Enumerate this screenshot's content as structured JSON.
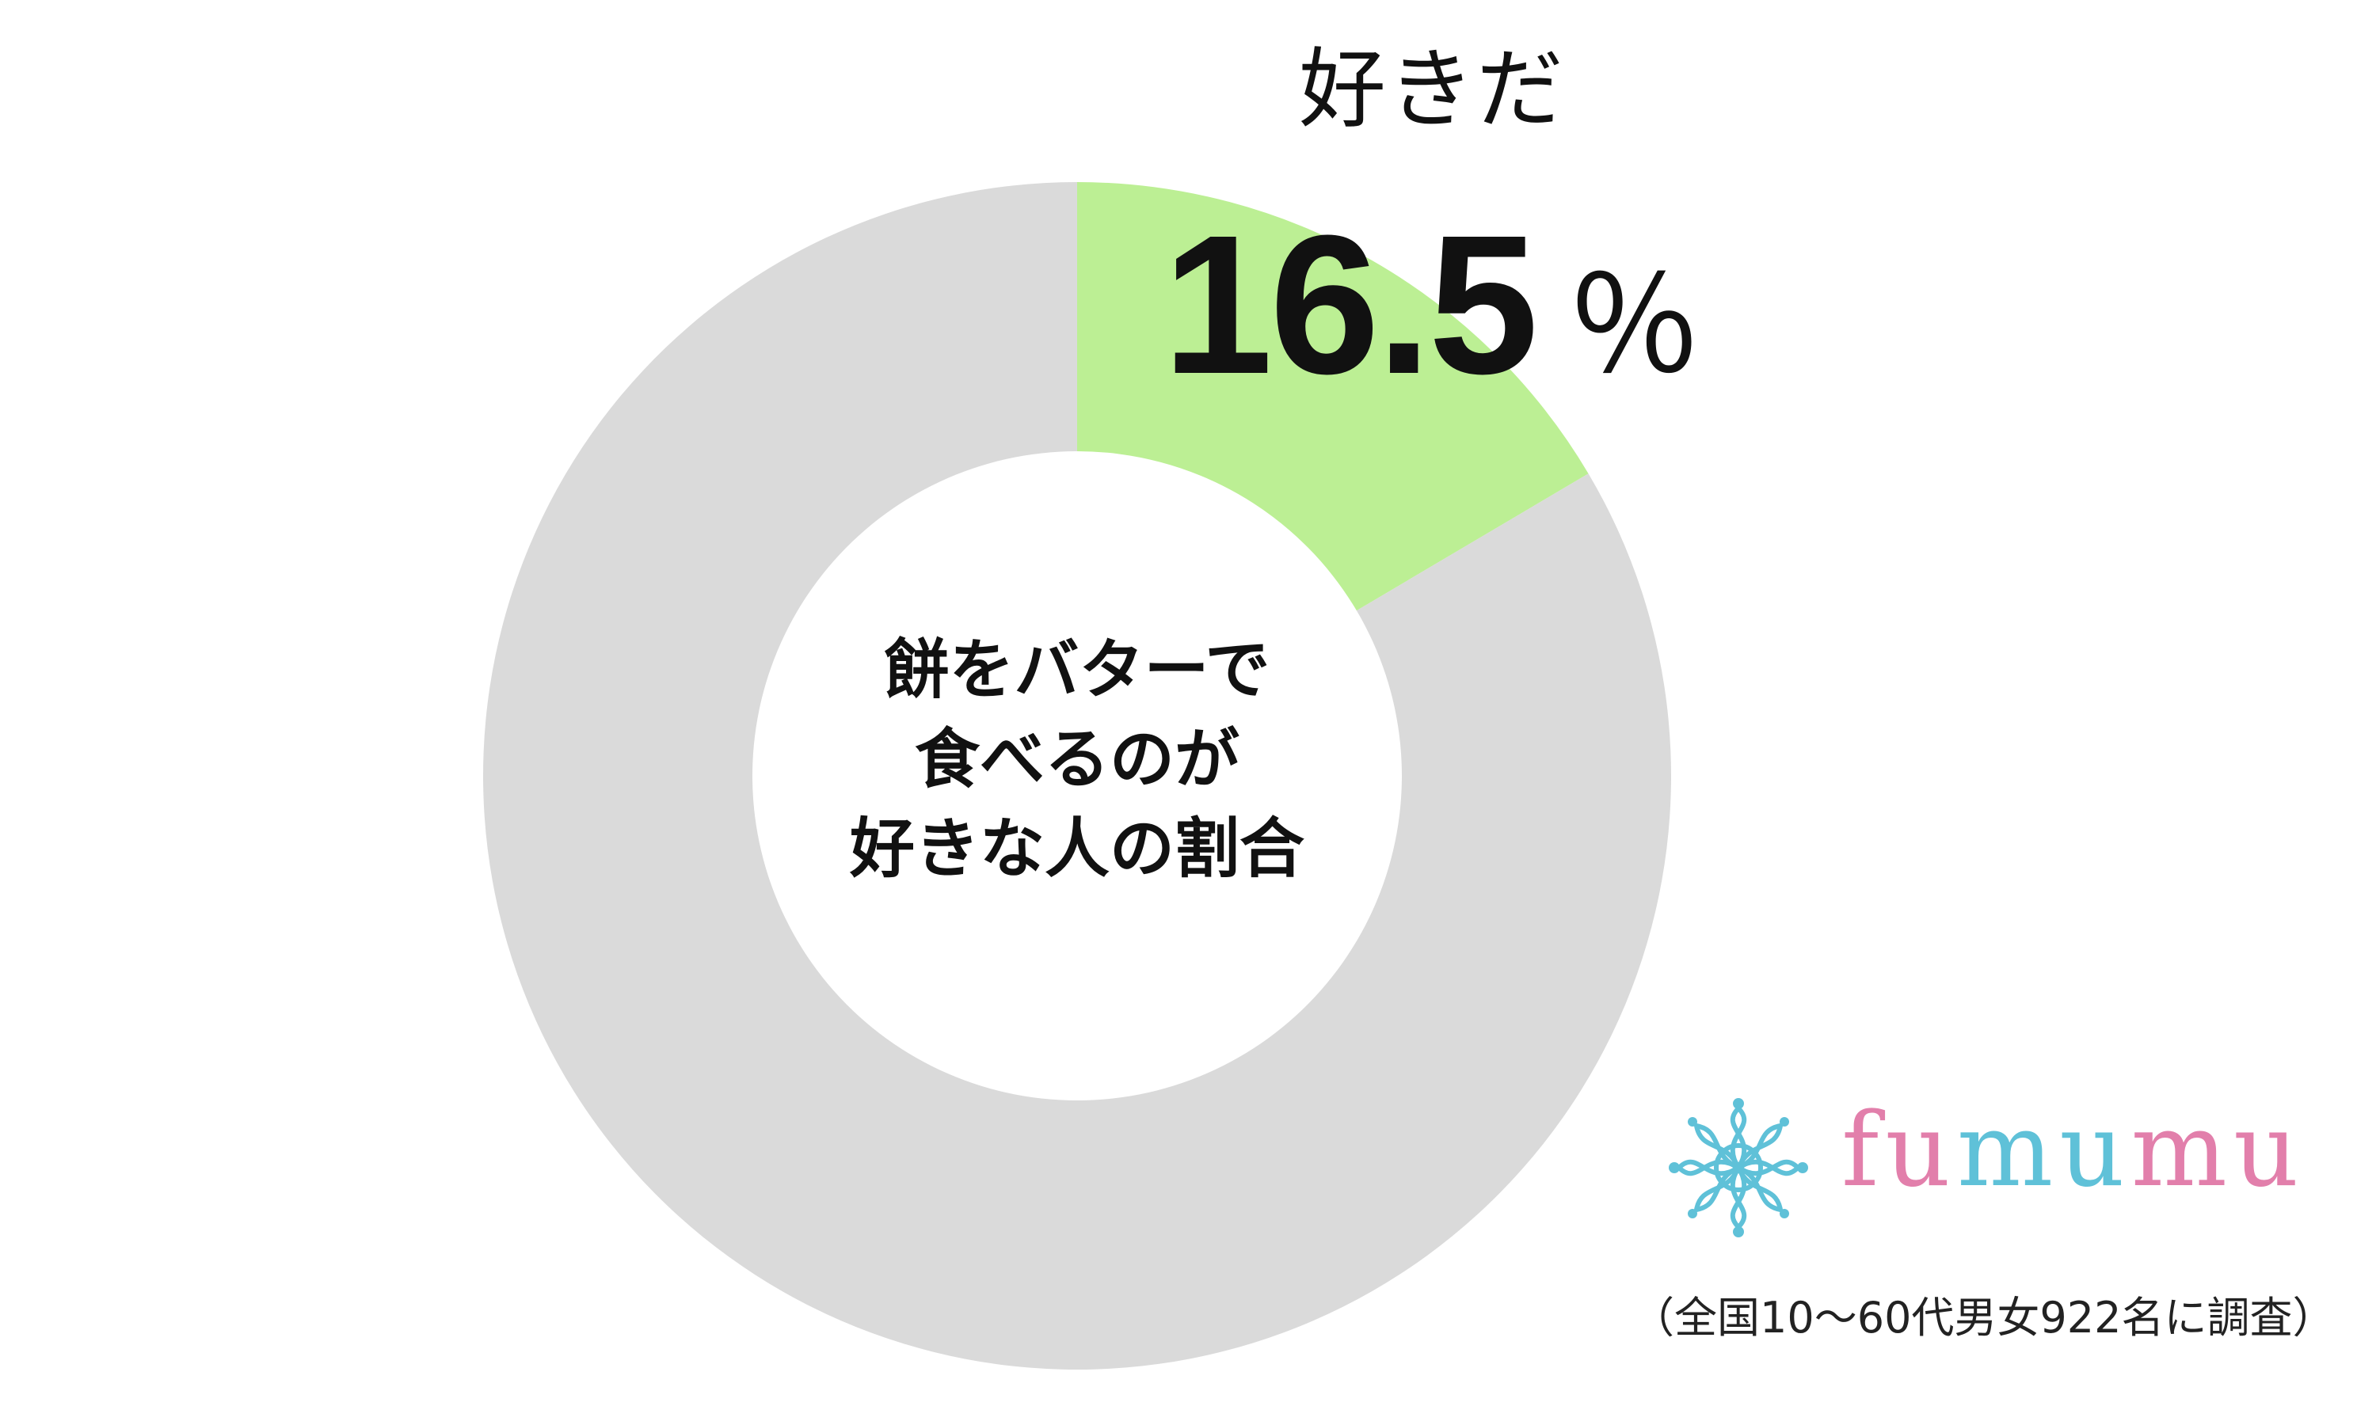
{
  "chart_data": {
    "type": "pie",
    "donut": true,
    "title": [
      "餅をバターで",
      "食べるのが",
      "好きな人の割合"
    ],
    "slices": [
      {
        "label": "好きだ",
        "value": 16.5,
        "color": "#bcef94",
        "show_label": true
      },
      {
        "label": "",
        "value": 83.5,
        "color": "#dadada",
        "show_label": false
      }
    ],
    "unit": "％",
    "value_text": "16.5"
  },
  "logo": {
    "text_pink": "fu",
    "text_blue": "mu",
    "text_pink2": "mu",
    "color_pink": "#e27fab",
    "color_blue": "#5fc1d8",
    "icon": "flower-emblem-icon"
  },
  "footnote": "（全国10～60代男女922名に調査）"
}
